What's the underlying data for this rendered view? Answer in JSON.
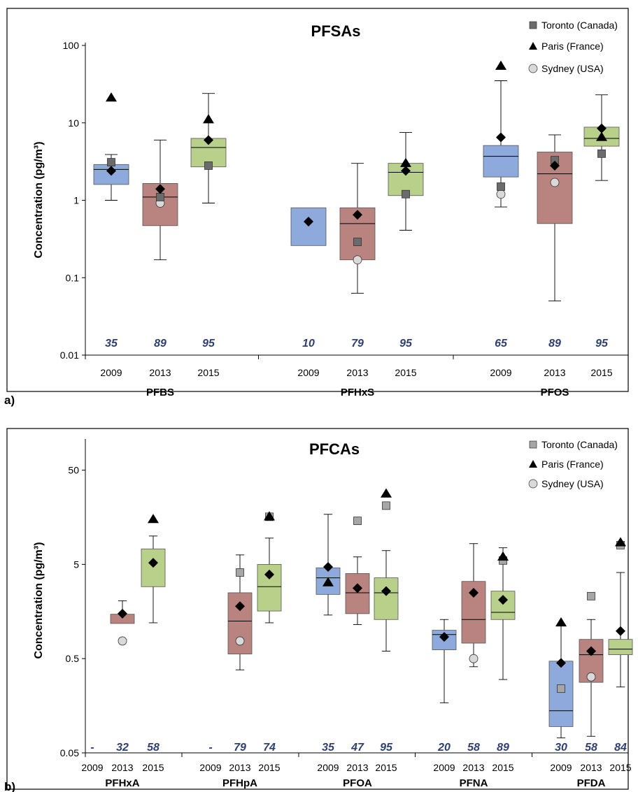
{
  "chart_data": [
    {
      "panel_label": "a)",
      "type": "box",
      "title": "PFSAs",
      "ylabel": "Concentration (pg/m³)",
      "yscale": "log",
      "ylim": [
        0.01,
        100
      ],
      "ytick_labels": [
        "0.01",
        "0.1",
        "1",
        "10",
        "100"
      ],
      "yticks": [
        0.01,
        0.1,
        1,
        10,
        100
      ],
      "legend": {
        "position": "top-right",
        "entries": [
          {
            "label": "Toronto (Canada)",
            "marker": "square",
            "color": "#6b6b6b"
          },
          {
            "label": "Paris (France)",
            "marker": "triangle",
            "color": "#000000"
          },
          {
            "label": "Sydney (USA)",
            "marker": "circle",
            "color": "#d9d9d9"
          }
        ]
      },
      "year_colors": {
        "2009": "#8ea9db",
        "2013": "#b9837f",
        "2015": "#b8d08a"
      },
      "groups": [
        {
          "name": "PFBS",
          "boxes": [
            {
              "year": "2009",
              "n": "35",
              "min": 1.0,
              "q1": 1.6,
              "median": 2.5,
              "q3": 2.9,
              "max": 3.9,
              "mean": 2.4,
              "toronto": 3.1,
              "paris": 21,
              "sydney": null
            },
            {
              "year": "2013",
              "n": "89",
              "min": 0.17,
              "q1": 0.47,
              "median": 1.1,
              "q3": 1.65,
              "max": 6.0,
              "mean": 1.4,
              "toronto": 1.1,
              "paris": null,
              "sydney": 0.92
            },
            {
              "year": "2015",
              "n": "95",
              "min": 0.92,
              "q1": 2.7,
              "median": 4.8,
              "q3": 6.3,
              "max": 24,
              "mean": 6.0,
              "toronto": 2.8,
              "paris": 11,
              "sydney": null
            }
          ]
        },
        {
          "name": "PFHxS",
          "boxes": [
            {
              "year": "2009",
              "n": "10",
              "min": null,
              "q1": 0.26,
              "median": null,
              "q3": 0.8,
              "max": null,
              "mean": 0.53,
              "toronto": null,
              "paris": null,
              "sydney": null
            },
            {
              "year": "2013",
              "n": "79",
              "min": 0.063,
              "q1": 0.17,
              "median": 0.5,
              "q3": 0.8,
              "max": 3.0,
              "mean": 0.65,
              "toronto": 0.29,
              "paris": null,
              "sydney": 0.17
            },
            {
              "year": "2015",
              "n": "95",
              "min": 0.41,
              "q1": 1.15,
              "median": 2.3,
              "q3": 3.0,
              "max": 7.5,
              "mean": 2.4,
              "toronto": 1.2,
              "paris": 3.0,
              "sydney": null
            }
          ]
        },
        {
          "name": "PFOS",
          "boxes": [
            {
              "year": "2009",
              "n": "65",
              "min": 0.82,
              "q1": 2.0,
              "median": 3.7,
              "q3": 5.1,
              "max": 35,
              "mean": 6.5,
              "toronto": 1.5,
              "paris": 54,
              "sydney": 1.2
            },
            {
              "year": "2013",
              "n": "89",
              "min": 0.05,
              "q1": 0.5,
              "median": 2.2,
              "q3": 4.2,
              "max": 7.0,
              "mean": 2.8,
              "toronto": 3.3,
              "paris": null,
              "sydney": 1.7
            },
            {
              "year": "2015",
              "n": "95",
              "min": 1.8,
              "q1": 5.0,
              "median": 6.3,
              "q3": 8.8,
              "max": 23,
              "mean": 8.5,
              "toronto": 4.0,
              "paris": 6.5,
              "sydney": null
            }
          ]
        }
      ]
    },
    {
      "panel_label": "b)",
      "type": "box",
      "title": "PFCAs",
      "ylabel": "Concentration (pg/m³)",
      "yscale": "log",
      "ylim": [
        0.05,
        100
      ],
      "ytick_labels": [
        "0.05",
        "0.5",
        "5",
        "50"
      ],
      "yticks": [
        0.05,
        0.5,
        5,
        50
      ],
      "legend": {
        "position": "top-right",
        "entries": [
          {
            "label": "Toronto (Canada)",
            "marker": "square",
            "color": "#a6a6a6"
          },
          {
            "label": "Paris (France)",
            "marker": "triangle",
            "color": "#000000"
          },
          {
            "label": "Sydney (USA)",
            "marker": "circle",
            "color": "#d9d9d9"
          }
        ]
      },
      "year_colors": {
        "2009": "#8ea9db",
        "2013": "#b9837f",
        "2015": "#b8d08a"
      },
      "groups": [
        {
          "name": "PFHxA",
          "boxes": [
            {
              "year": "2009",
              "n": "-",
              "empty": true
            },
            {
              "year": "2013",
              "n": "32",
              "min": null,
              "q1": 1.18,
              "median": null,
              "q3": 1.48,
              "max": 2.05,
              "mean": 1.5,
              "toronto": null,
              "paris": null,
              "sydney": 0.77
            },
            {
              "year": "2015",
              "n": "58",
              "min": 1.2,
              "q1": 2.9,
              "median": null,
              "q3": 7.3,
              "max": 10,
              "mean": 5.2,
              "toronto": null,
              "paris": 15,
              "sydney": null
            }
          ]
        },
        {
          "name": "PFHpA",
          "boxes": [
            {
              "year": "2009",
              "n": "-",
              "empty": true
            },
            {
              "year": "2013",
              "n": "79",
              "min": 0.38,
              "q1": 0.56,
              "median": 1.25,
              "q3": 2.5,
              "max": 6.3,
              "mean": 1.8,
              "toronto": 4.1,
              "paris": null,
              "sydney": 0.77
            },
            {
              "year": "2015",
              "n": "74",
              "min": 1.2,
              "q1": 1.6,
              "median": 2.9,
              "q3": 5.0,
              "max": 9.5,
              "mean": 3.9,
              "toronto": 16,
              "paris": 16,
              "sydney": null
            }
          ]
        },
        {
          "name": "PFOA",
          "boxes": [
            {
              "year": "2009",
              "n": "35",
              "min": 1.45,
              "q1": 2.4,
              "median": 3.6,
              "q3": 4.6,
              "max": 17,
              "mean": 4.7,
              "toronto": null,
              "paris": 3.2,
              "sydney": null
            },
            {
              "year": "2013",
              "n": "47",
              "min": 1.15,
              "q1": 1.5,
              "median": 2.5,
              "q3": 4.0,
              "max": 6.0,
              "mean": 2.8,
              "toronto": 14.5,
              "paris": null,
              "sydney": null
            },
            {
              "year": "2015",
              "n": "95",
              "min": 0.6,
              "q1": 1.3,
              "median": 2.5,
              "q3": 3.6,
              "max": 7.0,
              "mean": 2.6,
              "toronto": 21,
              "paris": 28,
              "sydney": null
            }
          ]
        },
        {
          "name": "PFNA",
          "boxes": [
            {
              "year": "2009",
              "n": "20",
              "min": 0.17,
              "q1": 0.62,
              "median": 0.9,
              "q3": 1.0,
              "max": 1.3,
              "mean": 0.85,
              "toronto": null,
              "paris": null,
              "sydney": null
            },
            {
              "year": "2013",
              "n": "58",
              "min": 0.41,
              "q1": 0.73,
              "median": 1.3,
              "q3": 3.3,
              "max": 8.3,
              "mean": 2.5,
              "toronto": null,
              "paris": null,
              "sydney": 0.5
            },
            {
              "year": "2015",
              "n": "89",
              "min": 0.3,
              "q1": 1.3,
              "median": 1.55,
              "q3": 2.6,
              "max": 7.5,
              "mean": 2.1,
              "toronto": 5.5,
              "paris": 6.0,
              "sydney": null
            }
          ]
        },
        {
          "name": "PFDA",
          "boxes": [
            {
              "year": "2009",
              "n": "30",
              "min": 0.072,
              "q1": 0.095,
              "median": 0.14,
              "q3": 0.47,
              "max": 1.15,
              "mean": 0.45,
              "toronto": 0.24,
              "paris": 1.2,
              "sydney": null
            },
            {
              "year": "2013",
              "n": "58",
              "min": 0.075,
              "q1": 0.28,
              "median": 0.55,
              "q3": 0.8,
              "max": 1.3,
              "mean": 0.6,
              "toronto": 2.3,
              "paris": null,
              "sydney": 0.32
            },
            {
              "year": "2015",
              "n": "84",
              "min": 0.25,
              "q1": 0.55,
              "median": 0.63,
              "q3": 0.8,
              "max": 4.1,
              "mean": 0.98,
              "toronto": 8.0,
              "paris": 8.5,
              "sydney": null
            }
          ]
        }
      ]
    }
  ]
}
